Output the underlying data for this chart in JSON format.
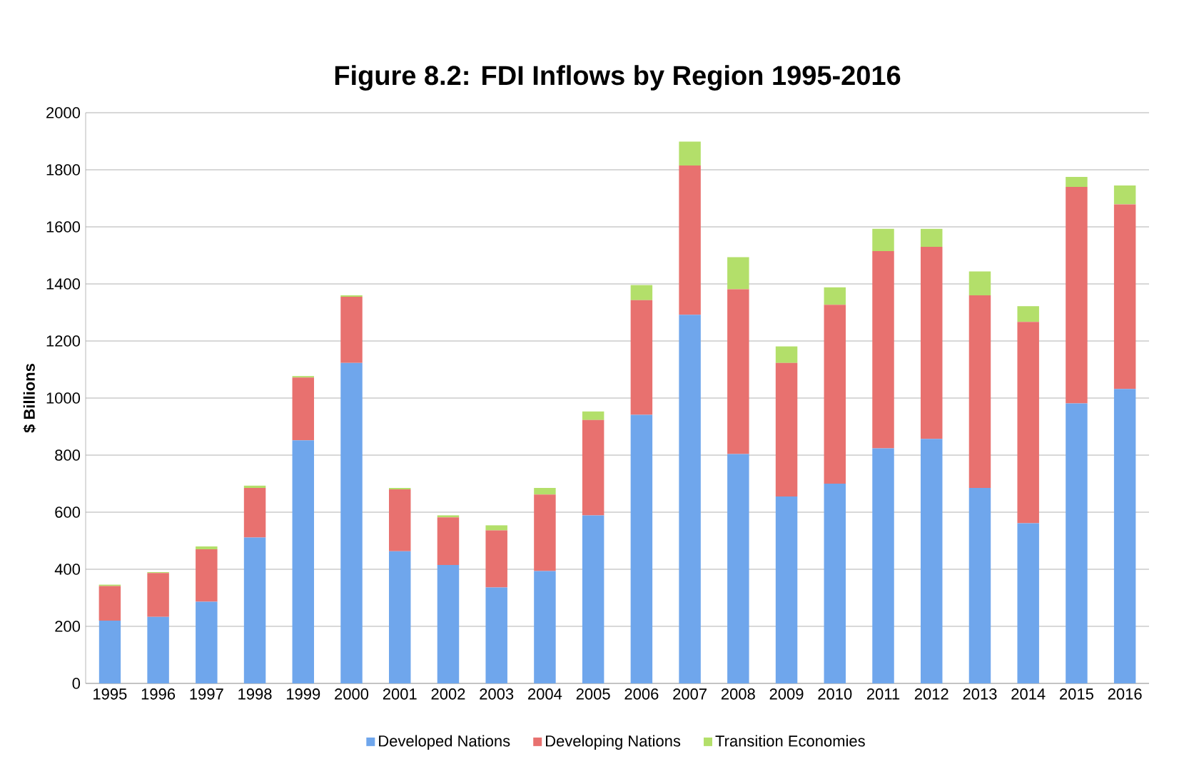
{
  "chart_data": {
    "type": "bar",
    "stacked": true,
    "title": "Figure 8.2: FDI Inflows by Region 1995-2016",
    "ylabel": "$ Billions",
    "categories": [
      "1995",
      "1996",
      "1997",
      "1998",
      "1999",
      "2000",
      "2001",
      "2002",
      "2003",
      "2004",
      "2005",
      "2006",
      "2007",
      "2008",
      "2009",
      "2010",
      "2011",
      "2012",
      "2013",
      "2014",
      "2015",
      "2016"
    ],
    "series": [
      {
        "name": "Developed Nations",
        "color": "#6fa6ec",
        "values": [
          220,
          233,
          286,
          511,
          852,
          1123,
          463,
          415,
          336,
          394,
          589,
          941,
          1292,
          804,
          655,
          700,
          824,
          857,
          685,
          561,
          981,
          1032
        ]
      },
      {
        "name": "Developing Nations",
        "color": "#e8716f",
        "values": [
          121,
          154,
          184,
          174,
          220,
          232,
          217,
          167,
          200,
          268,
          334,
          402,
          523,
          577,
          468,
          627,
          691,
          673,
          675,
          706,
          759,
          647
        ]
      },
      {
        "name": "Transition Economies",
        "color": "#b3df6a",
        "values": [
          5,
          3,
          10,
          8,
          5,
          5,
          5,
          7,
          18,
          23,
          30,
          53,
          84,
          113,
          58,
          61,
          78,
          63,
          84,
          55,
          35,
          66
        ]
      }
    ],
    "ylim": [
      0,
      2000
    ],
    "yticks": [
      0,
      200,
      400,
      600,
      800,
      1000,
      1200,
      1400,
      1600,
      1800,
      2000
    ],
    "grid": "y",
    "legend": "bottom"
  }
}
